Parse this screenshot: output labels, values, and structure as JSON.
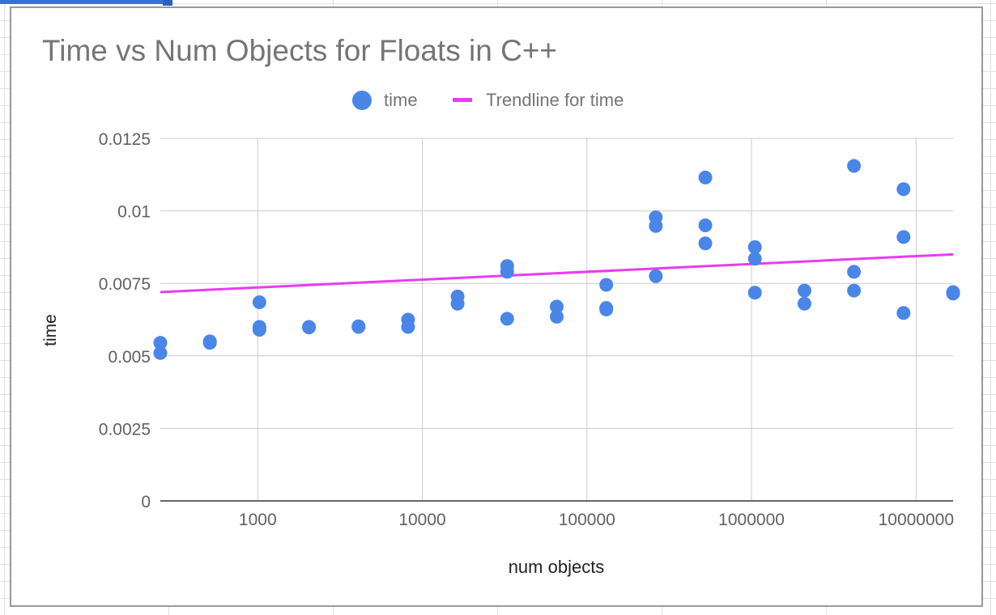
{
  "chart_data": {
    "type": "scatter",
    "title": "Time vs Num Objects for Floats in C++",
    "xlabel": "num objects",
    "ylabel": "time",
    "x_scale": "log10",
    "xlim": [
      256,
      16777216
    ],
    "ylim": [
      0,
      0.0125
    ],
    "x_ticks": [
      1000,
      10000,
      100000,
      1000000,
      10000000
    ],
    "x_tick_labels": [
      "1000",
      "10000",
      "100000",
      "1000000",
      "10000000"
    ],
    "y_ticks": [
      0,
      0.0025,
      0.005,
      0.0075,
      0.01,
      0.0125
    ],
    "y_tick_labels": [
      "0",
      "0.0025",
      "0.005",
      "0.0075",
      "0.01",
      "0.0125"
    ],
    "grid": true,
    "legend": "top-center",
    "series": [
      {
        "name": "time",
        "type": "scatter",
        "color": "#4a86e8",
        "points": [
          [
            256,
            0.00545
          ],
          [
            256,
            0.0051
          ],
          [
            512,
            0.0055
          ],
          [
            512,
            0.00545
          ],
          [
            1024,
            0.00685
          ],
          [
            1024,
            0.006
          ],
          [
            1024,
            0.0059
          ],
          [
            2048,
            0.006
          ],
          [
            2048,
            0.00598
          ],
          [
            4096,
            0.006
          ],
          [
            4096,
            0.00602
          ],
          [
            8192,
            0.00625
          ],
          [
            8192,
            0.006
          ],
          [
            16384,
            0.00705
          ],
          [
            16384,
            0.0068
          ],
          [
            32768,
            0.0081
          ],
          [
            32768,
            0.0079
          ],
          [
            32768,
            0.00628
          ],
          [
            65536,
            0.0067
          ],
          [
            65536,
            0.00635
          ],
          [
            131072,
            0.00745
          ],
          [
            131072,
            0.0066
          ],
          [
            131072,
            0.00665
          ],
          [
            262144,
            0.00978
          ],
          [
            262144,
            0.00948
          ],
          [
            262144,
            0.00775
          ],
          [
            524288,
            0.01115
          ],
          [
            524288,
            0.0095
          ],
          [
            524288,
            0.00888
          ],
          [
            1048576,
            0.00875
          ],
          [
            1048576,
            0.00835
          ],
          [
            1048576,
            0.00718
          ],
          [
            2097152,
            0.00725
          ],
          [
            2097152,
            0.0068
          ],
          [
            4194304,
            0.01155
          ],
          [
            4194304,
            0.0079
          ],
          [
            4194304,
            0.00725
          ],
          [
            8388608,
            0.01075
          ],
          [
            8388608,
            0.0091
          ],
          [
            8388608,
            0.00648
          ],
          [
            16777216,
            0.0072
          ],
          [
            16777216,
            0.00715
          ]
        ]
      },
      {
        "name": "Trendline for time",
        "type": "line",
        "color": "#e83cf0",
        "points": [
          [
            256,
            0.0072
          ],
          [
            16777216,
            0.0085
          ]
        ]
      }
    ]
  }
}
